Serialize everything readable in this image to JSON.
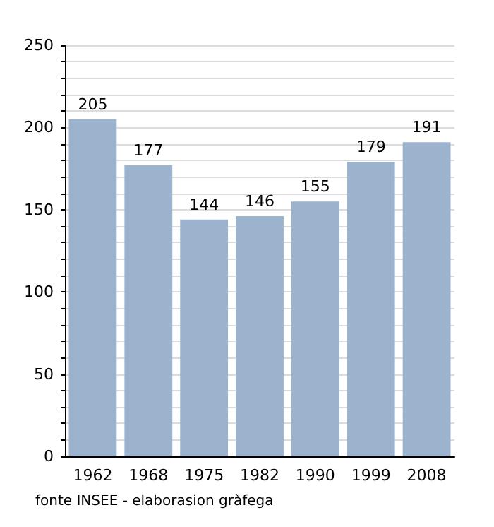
{
  "chart_data": {
    "type": "bar",
    "categories": [
      "1962",
      "1968",
      "1975",
      "1982",
      "1990",
      "1999",
      "2008"
    ],
    "values": [
      205,
      177,
      144,
      146,
      155,
      179,
      191
    ],
    "color": "#9bb3cc",
    "data_labels": true,
    "ylim": [
      0,
      250
    ],
    "yticks": [
      0,
      {
        "value": 10,
        "label": null
      },
      {
        "value": 20,
        "label": null
      },
      {
        "value": 30,
        "label": null
      },
      {
        "value": 40,
        "label": null
      },
      50,
      {
        "value": 60,
        "label": null
      },
      {
        "value": 70,
        "label": null
      },
      {
        "value": 80,
        "label": null
      },
      {
        "value": 90,
        "label": null
      },
      100,
      {
        "value": 110,
        "label": null
      },
      {
        "value": 120,
        "label": null
      },
      {
        "value": 130,
        "label": null
      },
      {
        "value": 140,
        "label": null
      },
      150,
      {
        "value": 160,
        "label": null
      },
      {
        "value": 170,
        "label": null
      },
      {
        "value": 180,
        "label": null
      },
      {
        "value": 190,
        "label": null
      },
      200,
      {
        "value": 210,
        "label": null
      },
      {
        "value": 220,
        "label": null
      },
      {
        "value": 230,
        "label": null
      },
      {
        "value": 240,
        "label": null
      },
      250
    ],
    "grid": "y",
    "annotations": [
      "fonte INSEE - elaborasion gràfega"
    ]
  }
}
